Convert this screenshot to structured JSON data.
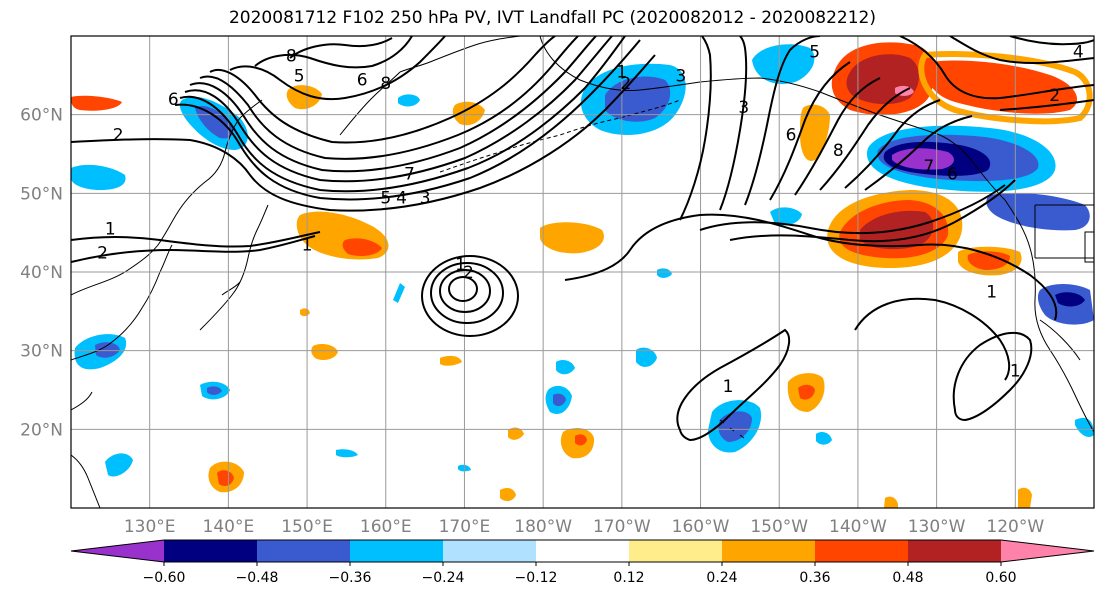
{
  "title": "2020081712 F102 250 hPa PV, IVT Landfall PC (2020082012 - 2020082212)",
  "map": {
    "extent_lon": [
      120,
      250
    ],
    "extent_lat": [
      10,
      70
    ],
    "lat_ticks": [
      {
        "value": 20,
        "label": "20°N"
      },
      {
        "value": 30,
        "label": "30°N"
      },
      {
        "value": 40,
        "label": "40°N"
      },
      {
        "value": 50,
        "label": "50°N"
      },
      {
        "value": 60,
        "label": "60°N"
      }
    ],
    "lon_ticks": [
      {
        "value": 130,
        "label": "130°E"
      },
      {
        "value": 140,
        "label": "140°E"
      },
      {
        "value": 150,
        "label": "150°E"
      },
      {
        "value": 160,
        "label": "160°E"
      },
      {
        "value": 170,
        "label": "170°E"
      },
      {
        "value": 180,
        "label": "180°W"
      },
      {
        "value": 190,
        "label": "170°W"
      },
      {
        "value": 200,
        "label": "160°W"
      },
      {
        "value": 210,
        "label": "150°W"
      },
      {
        "value": 220,
        "label": "140°W"
      },
      {
        "value": 230,
        "label": "130°W"
      },
      {
        "value": 240,
        "label": "120°W"
      }
    ],
    "gridlines": true,
    "contour_labels": [
      {
        "text": "8",
        "lon": 148,
        "lat": 67.5
      },
      {
        "text": "5",
        "lon": 149,
        "lat": 65
      },
      {
        "text": "6",
        "lon": 157,
        "lat": 64.5
      },
      {
        "text": "8",
        "lon": 160,
        "lat": 64
      },
      {
        "text": "6",
        "lon": 133,
        "lat": 62
      },
      {
        "text": "2",
        "lon": 126,
        "lat": 57.5
      },
      {
        "text": "7",
        "lon": 163,
        "lat": 52.5
      },
      {
        "text": "5",
        "lon": 160,
        "lat": 49.5
      },
      {
        "text": "4",
        "lon": 162,
        "lat": 49.5
      },
      {
        "text": "3",
        "lon": 165,
        "lat": 49.5
      },
      {
        "text": "1",
        "lon": 125,
        "lat": 45.5
      },
      {
        "text": "2",
        "lon": 124,
        "lat": 42.5
      },
      {
        "text": "1",
        "lon": 150,
        "lat": 43.5
      },
      {
        "text": "1",
        "lon": 169.5,
        "lat": 41
      },
      {
        "text": "2",
        "lon": 170.5,
        "lat": 40
      },
      {
        "text": "1",
        "lon": 190,
        "lat": 65.5
      },
      {
        "text": "2",
        "lon": 190.5,
        "lat": 64
      },
      {
        "text": "3",
        "lon": 197.5,
        "lat": 65
      },
      {
        "text": "3",
        "lon": 205.5,
        "lat": 61
      },
      {
        "text": "6",
        "lon": 211.5,
        "lat": 57.5
      },
      {
        "text": "5",
        "lon": 214.5,
        "lat": 68
      },
      {
        "text": "8",
        "lon": 217.5,
        "lat": 55.5
      },
      {
        "text": "7",
        "lon": 229,
        "lat": 53.5
      },
      {
        "text": "6",
        "lon": 232,
        "lat": 52.5
      },
      {
        "text": "4",
        "lon": 248,
        "lat": 68
      },
      {
        "text": "2",
        "lon": 245,
        "lat": 62.5
      },
      {
        "text": "1",
        "lon": 237,
        "lat": 37.5
      },
      {
        "text": "1",
        "lon": 240,
        "lat": 27.5
      },
      {
        "text": "1",
        "lon": 203.5,
        "lat": 25.5
      }
    ]
  },
  "colorbar": {
    "colors": [
      "#9932CC",
      "#000080",
      "#3A5AD0",
      "#00BFFF",
      "#B0E2FF",
      "#FFFFFF",
      "#FFEC8B",
      "#FFA500",
      "#FF4500",
      "#B22222",
      "#FF82AB"
    ],
    "levels": [
      -0.6,
      -0.48,
      -0.36,
      -0.24,
      -0.12,
      0.12,
      0.24,
      0.36,
      0.48,
      0.6
    ],
    "tick_labels": [
      "−0.60",
      "−0.48",
      "−0.36",
      "−0.24",
      "−0.12",
      "0.12",
      "0.24",
      "0.36",
      "0.48",
      "0.60"
    ],
    "extend": "both"
  }
}
